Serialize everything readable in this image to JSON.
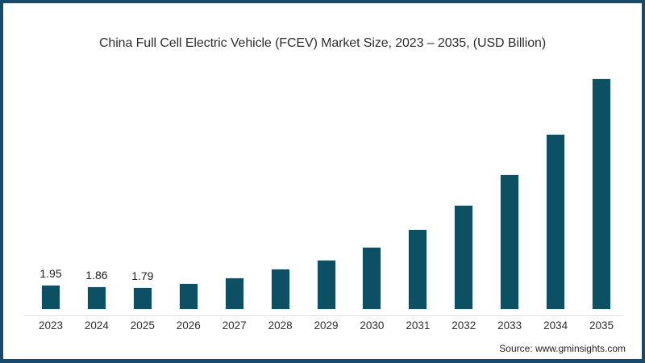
{
  "page": {
    "background": "#ffffff",
    "frame_border_color": "#1a4a6b"
  },
  "chart_data": {
    "type": "bar",
    "title": "China Full Cell Electric Vehicle (FCEV) Market Size, 2023 – 2035, (USD Billion)",
    "xlabel": "",
    "ylabel": "",
    "units": "USD Billion",
    "grid": false,
    "legend": false,
    "ylim": [
      0,
      20
    ],
    "categories": [
      "2023",
      "2024",
      "2025",
      "2026",
      "2027",
      "2028",
      "2029",
      "2030",
      "2031",
      "2032",
      "2033",
      "2034",
      "2035"
    ],
    "values": [
      1.95,
      1.86,
      1.79,
      2.1,
      2.6,
      3.3,
      4.1,
      5.2,
      6.7,
      8.7,
      11.3,
      14.7,
      19.4
    ],
    "value_labels": [
      "1.95",
      "1.86",
      "1.79",
      "",
      "",
      "",
      "",
      "",
      "",
      "",
      "",
      "",
      ""
    ],
    "bar_color": "#0e5063",
    "axis_line_color": "#e2e2e2",
    "text_color": "#2e2e2e"
  },
  "source": {
    "label": "Source: www.gminsights.com"
  }
}
